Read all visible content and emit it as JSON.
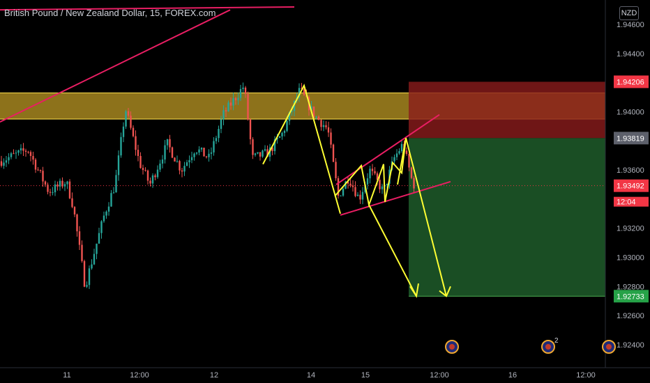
{
  "header": {
    "symbol_title": "British Pound / New Zealand Dollar, 15, FOREX.com",
    "currency_label": "NZD"
  },
  "colors": {
    "background": "#000000",
    "candle_up": "#26a69a",
    "candle_down": "#ef5350",
    "resistance_zone": "#c9a227",
    "stop_zone": "#8b1c1c",
    "target_zone": "#1e5c2a",
    "pattern_lines": "#ffff33",
    "trend_lines": "#e91e63",
    "current_price_badge": "#f23645",
    "target_badge": "#26a248",
    "entry_badge": "#5d606b"
  },
  "chart_data": {
    "type": "candlestick",
    "y_axis": {
      "range": [
        1.9228,
        1.9472
      ],
      "ticks": [
        "1.94600",
        "1.94400",
        "1.94000",
        "1.93600",
        "1.93200",
        "1.93000",
        "1.92800",
        "1.92600",
        "1.92400"
      ]
    },
    "x_axis": {
      "ticks": [
        "11",
        "12:00",
        "12",
        "14",
        "15",
        "12:00",
        "16",
        "12:00"
      ]
    },
    "price_badges": [
      {
        "label": "1.94206",
        "price": 1.94206,
        "role": "stop-loss"
      },
      {
        "label": "1.93819",
        "price": 1.93819,
        "role": "entry"
      },
      {
        "label": "1.93492",
        "price": 1.93492,
        "role": "current-price"
      },
      {
        "label": "12:04",
        "price": 1.934,
        "role": "countdown"
      },
      {
        "label": "1.92733",
        "price": 1.92733,
        "role": "take-profit"
      }
    ],
    "resistance_zone": {
      "from": 1.9395,
      "to": 1.9413
    },
    "position": {
      "type": "short",
      "entry": 1.93819,
      "stop": 1.94206,
      "target": 1.92733
    },
    "events": [
      {
        "label": ""
      },
      {
        "label": "2"
      },
      {
        "label": ""
      }
    ]
  }
}
